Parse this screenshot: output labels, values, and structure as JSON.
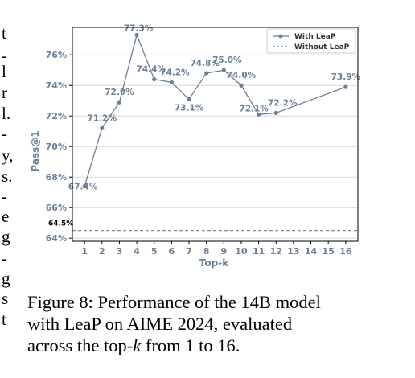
{
  "left_text_fragments": [
    "t",
    "-",
    "l",
    "r",
    "l.",
    "-",
    "y,",
    "s.",
    "-",
    "e",
    "g",
    "-",
    "g",
    "s",
    "t"
  ],
  "caption": {
    "line1": "Figure 8: Performance of the 14B model",
    "line2": "with LeaP on AIME 2024, evaluated",
    "line3_prefix": "across the top-",
    "line3_k": "k",
    "line3_suffix": " from 1 to 16."
  },
  "chart_data": {
    "type": "line",
    "xlabel": "Top-k",
    "ylabel": "Pass@1",
    "xlim": [
      0.3,
      16.7
    ],
    "ylim": [
      63.8,
      77.8
    ],
    "x_ticks": [
      "1",
      "2",
      "3",
      "4",
      "5",
      "6",
      "7",
      "8",
      "9",
      "10",
      "11",
      "12",
      "13",
      "14",
      "15",
      "16"
    ],
    "y_ticks": [
      "64%",
      "66%",
      "68%",
      "70%",
      "72%",
      "74%",
      "76%"
    ],
    "y_tick_values": [
      64,
      66,
      68,
      70,
      72,
      74,
      76
    ],
    "grid": true,
    "legend_position": "top-right",
    "series": [
      {
        "name": "With LeaP",
        "x": [
          1,
          2,
          3,
          4,
          5,
          6,
          7,
          8,
          9,
          10,
          11,
          12,
          16
        ],
        "values": [
          67.4,
          71.2,
          72.9,
          77.3,
          74.4,
          74.2,
          73.1,
          74.8,
          75.0,
          74.0,
          72.1,
          72.2,
          73.9
        ],
        "labels": [
          "67.4%",
          "71.2%",
          "72.9%",
          "77.3%",
          "74.4%",
          "74.2%",
          "73.1%",
          "74.8%",
          "75.0%",
          "74.0%",
          "72.1%",
          "72.2%",
          "73.9%"
        ],
        "color": "#6b7f99"
      },
      {
        "name": "Without LeaP",
        "value": 64.5,
        "label": "64.5%",
        "style": "dashed",
        "color": "#6b7f99"
      }
    ]
  }
}
